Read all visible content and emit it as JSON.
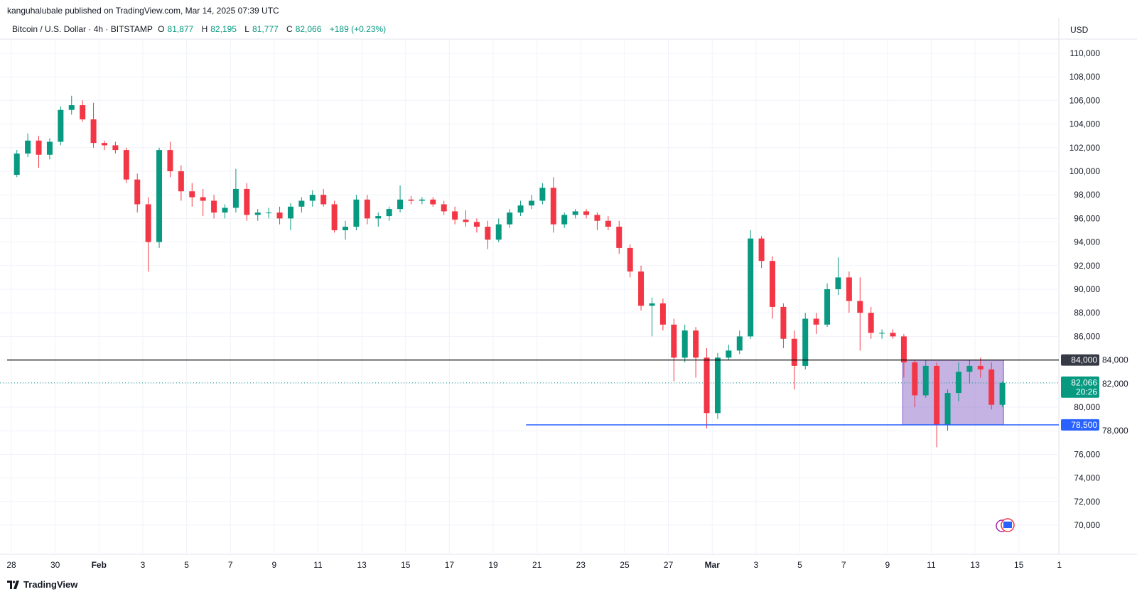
{
  "header": {
    "published": "kanguhalubale published on TradingView.com, Mar 14, 2025 07:39 UTC",
    "symbol": "Bitcoin / U.S. Dollar · 4h · BITSTAMP",
    "o_label": "O",
    "o": "81,877",
    "h_label": "H",
    "h": "82,195",
    "l_label": "L",
    "l": "81,777",
    "c_label": "C",
    "c": "82,066",
    "change": "+189 (+0.23%)"
  },
  "footer": {
    "brand": "TradingView"
  },
  "colors": {
    "up": "#089981",
    "down": "#F23645",
    "support": "#2962FF",
    "resistance": "#000000",
    "box": "#9575CD"
  },
  "chart_data": {
    "type": "candlestick",
    "title": "Bitcoin / U.S. Dollar · 4h · BITSTAMP",
    "currency_label": "USD",
    "values_in_thousands": true,
    "ylim": [
      69000,
      112000
    ],
    "y_ticks": [
      "110,000",
      "108,000",
      "106,000",
      "104,000",
      "102,000",
      "100,000",
      "98,000",
      "96,000",
      "94,000",
      "92,000",
      "90,000",
      "88,000",
      "86,000",
      "84,000",
      "82,000",
      "80,000",
      "78,000",
      "76,000",
      "74,000",
      "72,000",
      "70,000"
    ],
    "y_tick_values": [
      110,
      108,
      106,
      104,
      102,
      100,
      98,
      96,
      94,
      92,
      90,
      88,
      86,
      84,
      82,
      80,
      78,
      76,
      74,
      72,
      70
    ],
    "x_ticks": [
      {
        "label": "28",
        "day": 0
      },
      {
        "label": "30",
        "day": 2
      },
      {
        "label": "Feb",
        "day": 4,
        "bold": true
      },
      {
        "label": "3",
        "day": 6
      },
      {
        "label": "5",
        "day": 8
      },
      {
        "label": "7",
        "day": 10
      },
      {
        "label": "9",
        "day": 12
      },
      {
        "label": "11",
        "day": 14
      },
      {
        "label": "13",
        "day": 16
      },
      {
        "label": "15",
        "day": 18
      },
      {
        "label": "17",
        "day": 20
      },
      {
        "label": "19",
        "day": 22
      },
      {
        "label": "21",
        "day": 24
      },
      {
        "label": "23",
        "day": 26
      },
      {
        "label": "25",
        "day": 28
      },
      {
        "label": "27",
        "day": 30
      },
      {
        "label": "Mar",
        "day": 32,
        "bold": true
      },
      {
        "label": "3",
        "day": 34
      },
      {
        "label": "5",
        "day": 36
      },
      {
        "label": "7",
        "day": 38
      },
      {
        "label": "9",
        "day": 40
      },
      {
        "label": "11",
        "day": 42
      },
      {
        "label": "13",
        "day": 44
      },
      {
        "label": "15",
        "day": 46
      },
      {
        "label": "1",
        "day": 47.85
      }
    ],
    "candle_period_days": 0.5,
    "ohlc": [
      [
        99.7,
        101.8,
        99.5,
        101.5
      ],
      [
        101.5,
        103.2,
        101.2,
        102.6
      ],
      [
        102.6,
        103.0,
        100.3,
        101.4
      ],
      [
        101.4,
        102.8,
        101.0,
        102.5
      ],
      [
        102.5,
        105.5,
        102.2,
        105.2
      ],
      [
        105.2,
        106.4,
        104.8,
        105.6
      ],
      [
        105.6,
        106.0,
        104.2,
        104.4
      ],
      [
        104.4,
        105.8,
        102.0,
        102.4
      ],
      [
        102.4,
        102.6,
        101.8,
        102.2
      ],
      [
        102.2,
        102.5,
        101.5,
        101.8
      ],
      [
        101.8,
        102.0,
        99.0,
        99.3
      ],
      [
        99.3,
        99.8,
        96.5,
        97.2
      ],
      [
        97.2,
        97.8,
        91.5,
        94.0
      ],
      [
        94.0,
        102.0,
        93.5,
        101.8
      ],
      [
        101.8,
        102.5,
        99.5,
        100.0
      ],
      [
        100.0,
        100.5,
        97.5,
        98.3
      ],
      [
        98.3,
        99.0,
        97.0,
        97.8
      ],
      [
        97.8,
        98.5,
        96.2,
        97.5
      ],
      [
        97.5,
        98.0,
        96.0,
        96.5
      ],
      [
        96.5,
        97.2,
        96.0,
        96.9
      ],
      [
        96.9,
        100.2,
        96.5,
        98.5
      ],
      [
        98.5,
        99.0,
        95.8,
        96.3
      ],
      [
        96.3,
        96.8,
        95.8,
        96.5
      ],
      [
        96.5,
        96.9,
        96.0,
        96.5
      ],
      [
        96.5,
        97.0,
        95.5,
        96.0
      ],
      [
        96.0,
        97.3,
        95.0,
        97.0
      ],
      [
        97.0,
        97.8,
        96.5,
        97.5
      ],
      [
        97.5,
        98.4,
        97.0,
        98.0
      ],
      [
        98.0,
        98.5,
        97.0,
        97.2
      ],
      [
        97.2,
        97.5,
        94.8,
        95.0
      ],
      [
        95.0,
        95.8,
        94.2,
        95.3
      ],
      [
        95.3,
        98.0,
        95.0,
        97.6
      ],
      [
        97.6,
        98.0,
        95.5,
        96.0
      ],
      [
        96.0,
        96.5,
        95.3,
        96.2
      ],
      [
        96.2,
        97.0,
        95.8,
        96.8
      ],
      [
        96.8,
        98.8,
        96.5,
        97.6
      ],
      [
        97.6,
        97.9,
        97.2,
        97.5
      ],
      [
        97.5,
        97.8,
        97.2,
        97.6
      ],
      [
        97.6,
        97.8,
        97.0,
        97.2
      ],
      [
        97.2,
        97.5,
        96.3,
        96.6
      ],
      [
        96.6,
        97.0,
        95.5,
        95.9
      ],
      [
        95.9,
        96.7,
        95.3,
        95.7
      ],
      [
        95.7,
        96.0,
        94.8,
        95.3
      ],
      [
        95.3,
        95.8,
        93.4,
        94.2
      ],
      [
        94.2,
        96.0,
        94.0,
        95.5
      ],
      [
        95.5,
        96.8,
        95.2,
        96.5
      ],
      [
        96.5,
        97.5,
        96.2,
        97.1
      ],
      [
        97.1,
        98.0,
        96.8,
        97.5
      ],
      [
        97.5,
        99.0,
        97.2,
        98.6
      ],
      [
        98.6,
        99.5,
        94.8,
        95.5
      ],
      [
        95.5,
        96.5,
        95.2,
        96.3
      ],
      [
        96.3,
        96.8,
        96.0,
        96.6
      ],
      [
        96.6,
        96.8,
        96.0,
        96.3
      ],
      [
        96.3,
        96.5,
        95.0,
        95.8
      ],
      [
        95.8,
        96.2,
        95.0,
        95.3
      ],
      [
        95.3,
        95.8,
        93.0,
        93.5
      ],
      [
        93.5,
        93.8,
        91.0,
        91.5
      ],
      [
        91.5,
        92.0,
        88.2,
        88.6
      ],
      [
        88.6,
        89.3,
        86.0,
        88.8
      ],
      [
        88.8,
        89.2,
        86.5,
        87.0
      ],
      [
        87.0,
        87.5,
        82.2,
        84.2
      ],
      [
        84.2,
        87.0,
        83.8,
        86.5
      ],
      [
        86.5,
        86.8,
        82.5,
        84.2
      ],
      [
        84.2,
        85.0,
        78.2,
        79.5
      ],
      [
        79.5,
        84.6,
        79.0,
        84.2
      ],
      [
        84.2,
        85.3,
        84.0,
        84.8
      ],
      [
        84.8,
        86.5,
        84.5,
        86.0
      ],
      [
        86.0,
        95.0,
        85.8,
        94.3
      ],
      [
        94.3,
        94.5,
        91.8,
        92.4
      ],
      [
        92.4,
        92.8,
        87.5,
        88.5
      ],
      [
        88.5,
        88.8,
        85.0,
        85.8
      ],
      [
        85.8,
        86.5,
        81.5,
        83.5
      ],
      [
        83.5,
        88.0,
        83.2,
        87.5
      ],
      [
        87.5,
        88.0,
        86.2,
        87.0
      ],
      [
        87.0,
        90.5,
        86.8,
        90.0
      ],
      [
        90.0,
        92.7,
        89.5,
        91.0
      ],
      [
        91.0,
        91.5,
        88.0,
        89.0
      ],
      [
        89.0,
        91.0,
        84.8,
        88.0
      ],
      [
        88.0,
        88.5,
        85.8,
        86.3
      ],
      [
        86.3,
        86.6,
        85.8,
        86.3
      ],
      [
        86.3,
        86.6,
        85.8,
        86.0
      ],
      [
        86.0,
        86.2,
        82.5,
        83.8
      ],
      [
        83.8,
        84.0,
        80.0,
        81.0
      ],
      [
        81.0,
        84.0,
        80.8,
        83.5
      ],
      [
        83.5,
        83.8,
        76.6,
        78.5
      ],
      [
        78.5,
        81.5,
        78.0,
        81.2
      ],
      [
        81.2,
        83.8,
        80.5,
        83.0
      ],
      [
        83.0,
        84.0,
        82.0,
        83.5
      ],
      [
        83.5,
        84.2,
        82.5,
        83.2
      ],
      [
        83.2,
        83.8,
        79.8,
        80.2
      ],
      [
        80.2,
        82.2,
        80.0,
        82.066
      ]
    ],
    "annotations": {
      "resistance": {
        "value": 84000,
        "label": "84,000",
        "from_day": 0
      },
      "support": {
        "value": 78500,
        "label": "78,500",
        "from_day": 23.5
      },
      "range_box": {
        "from_day": 40.7,
        "to_day": 45.3,
        "top": 84000,
        "bottom": 78500
      },
      "last_price": {
        "value": 82066,
        "label": "82,066",
        "countdown": "20:26"
      }
    }
  }
}
